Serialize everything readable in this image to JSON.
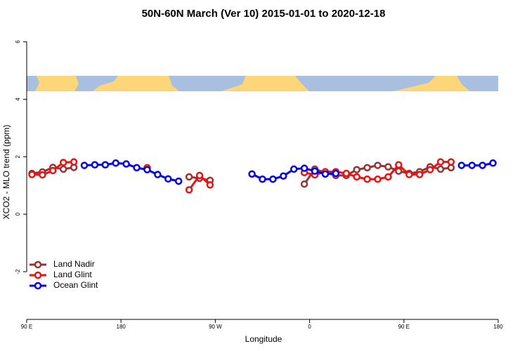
{
  "chart_data": {
    "type": "line",
    "title": "50N-60N March (Ver 10)   2015-01-01 to 2020-12-18",
    "x_label": "Longitude",
    "y_label": "XCO2 - MLO trend (ppm)",
    "x": [
      -265,
      -255,
      -245,
      -235,
      -225,
      -215,
      -205,
      -195,
      -185,
      -175,
      -165,
      -155,
      -145,
      -135,
      -125,
      -115,
      -105,
      -95,
      -85,
      -75,
      -65,
      -55,
      -45,
      -35,
      -25,
      -15,
      -5,
      5,
      15,
      25,
      35,
      45,
      55,
      65,
      75,
      85,
      95,
      105,
      115,
      125,
      135,
      145,
      155,
      165,
      175
    ],
    "series": [
      {
        "name": "Land Nadir",
        "color": "#993333",
        "values": [
          1.42,
          1.47,
          1.63,
          1.57,
          1.63,
          null,
          null,
          null,
          null,
          null,
          null,
          null,
          null,
          null,
          null,
          1.3,
          1.25,
          1.18,
          null,
          null,
          null,
          null,
          null,
          null,
          null,
          null,
          1.05,
          1.57,
          1.45,
          1.35,
          1.35,
          1.55,
          1.62,
          1.7,
          1.65,
          1.5,
          1.42,
          1.48,
          1.65,
          1.57,
          1.62,
          null,
          null,
          null,
          null
        ]
      },
      {
        "name": "Land Glint",
        "color": "#ee1111",
        "values": [
          1.38,
          1.37,
          1.52,
          1.8,
          1.82,
          null,
          null,
          null,
          null,
          null,
          null,
          1.62,
          null,
          null,
          null,
          0.85,
          1.35,
          1.02,
          null,
          null,
          null,
          null,
          null,
          null,
          null,
          null,
          1.45,
          1.37,
          1.48,
          1.48,
          1.42,
          1.3,
          1.22,
          1.22,
          1.3,
          1.72,
          1.38,
          1.38,
          1.55,
          1.82,
          1.82,
          null,
          null,
          null,
          null
        ]
      },
      {
        "name": "Ocean Glint",
        "color": "#0000ee",
        "values": [
          null,
          null,
          null,
          null,
          null,
          1.7,
          1.72,
          1.72,
          1.78,
          1.75,
          1.62,
          1.55,
          1.38,
          1.23,
          1.15,
          null,
          null,
          null,
          null,
          null,
          null,
          1.4,
          1.22,
          1.22,
          1.33,
          1.57,
          1.6,
          1.5,
          1.4,
          1.42,
          null,
          null,
          null,
          null,
          null,
          null,
          null,
          null,
          null,
          null,
          null,
          1.7,
          1.7,
          1.7,
          1.78
        ]
      }
    ],
    "xlim": [
      -270,
      180
    ],
    "xticks": [
      {
        "value": -270,
        "label": "90 E"
      },
      {
        "value": -180,
        "label": "180"
      },
      {
        "value": -90,
        "label": "90 W"
      },
      0,
      {
        "value": 90,
        "label": "90 E"
      },
      {
        "value": 180,
        "label": "180"
      }
    ],
    "ylim": [
      -3.66,
      6.6
    ],
    "yticks": [
      -2,
      0,
      2,
      4,
      6
    ],
    "legend": "bottomleft"
  }
}
